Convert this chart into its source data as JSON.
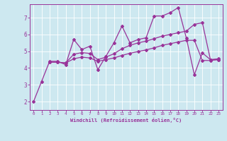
{
  "xlabel": "Windchill (Refroidissement éolien,°C)",
  "bg_color": "#cde8f0",
  "line_color": "#993399",
  "xlim": [
    -0.5,
    23.5
  ],
  "ylim": [
    1.5,
    7.8
  ],
  "xticks": [
    0,
    1,
    2,
    3,
    4,
    5,
    6,
    7,
    8,
    9,
    10,
    11,
    12,
    13,
    14,
    15,
    16,
    17,
    18,
    19,
    20,
    21,
    22,
    23
  ],
  "yticks": [
    2,
    3,
    4,
    5,
    6,
    7
  ],
  "series1_x": [
    0,
    1,
    2,
    3,
    4,
    5,
    6,
    7,
    8,
    9,
    10,
    11,
    12,
    13,
    14,
    15,
    16,
    17,
    18,
    19,
    20,
    21,
    22,
    23
  ],
  "series1_y": [
    2.0,
    3.2,
    4.4,
    4.4,
    4.2,
    5.7,
    5.1,
    5.3,
    3.9,
    4.7,
    5.5,
    6.5,
    5.5,
    5.7,
    5.8,
    7.1,
    7.1,
    7.3,
    7.6,
    5.8,
    3.6,
    4.9,
    4.5,
    4.5
  ],
  "series2_x": [
    2,
    3,
    4,
    5,
    6,
    7,
    8,
    9,
    10,
    11,
    12,
    13,
    14,
    15,
    16,
    17,
    18,
    19,
    20,
    21,
    22,
    23
  ],
  "series2_y": [
    4.35,
    4.35,
    4.3,
    4.55,
    4.65,
    4.6,
    4.4,
    4.5,
    4.6,
    4.75,
    4.88,
    4.98,
    5.08,
    5.2,
    5.35,
    5.45,
    5.55,
    5.65,
    5.65,
    4.45,
    4.45,
    4.5
  ],
  "series3_x": [
    2,
    3,
    4,
    5,
    6,
    7,
    8,
    9,
    10,
    11,
    12,
    13,
    14,
    15,
    16,
    17,
    18,
    19,
    20,
    21,
    22,
    23
  ],
  "series3_y": [
    4.35,
    4.35,
    4.3,
    4.82,
    4.92,
    4.87,
    4.5,
    4.65,
    4.85,
    5.15,
    5.35,
    5.5,
    5.6,
    5.75,
    5.9,
    6.0,
    6.1,
    6.2,
    6.6,
    6.7,
    4.5,
    4.55
  ]
}
